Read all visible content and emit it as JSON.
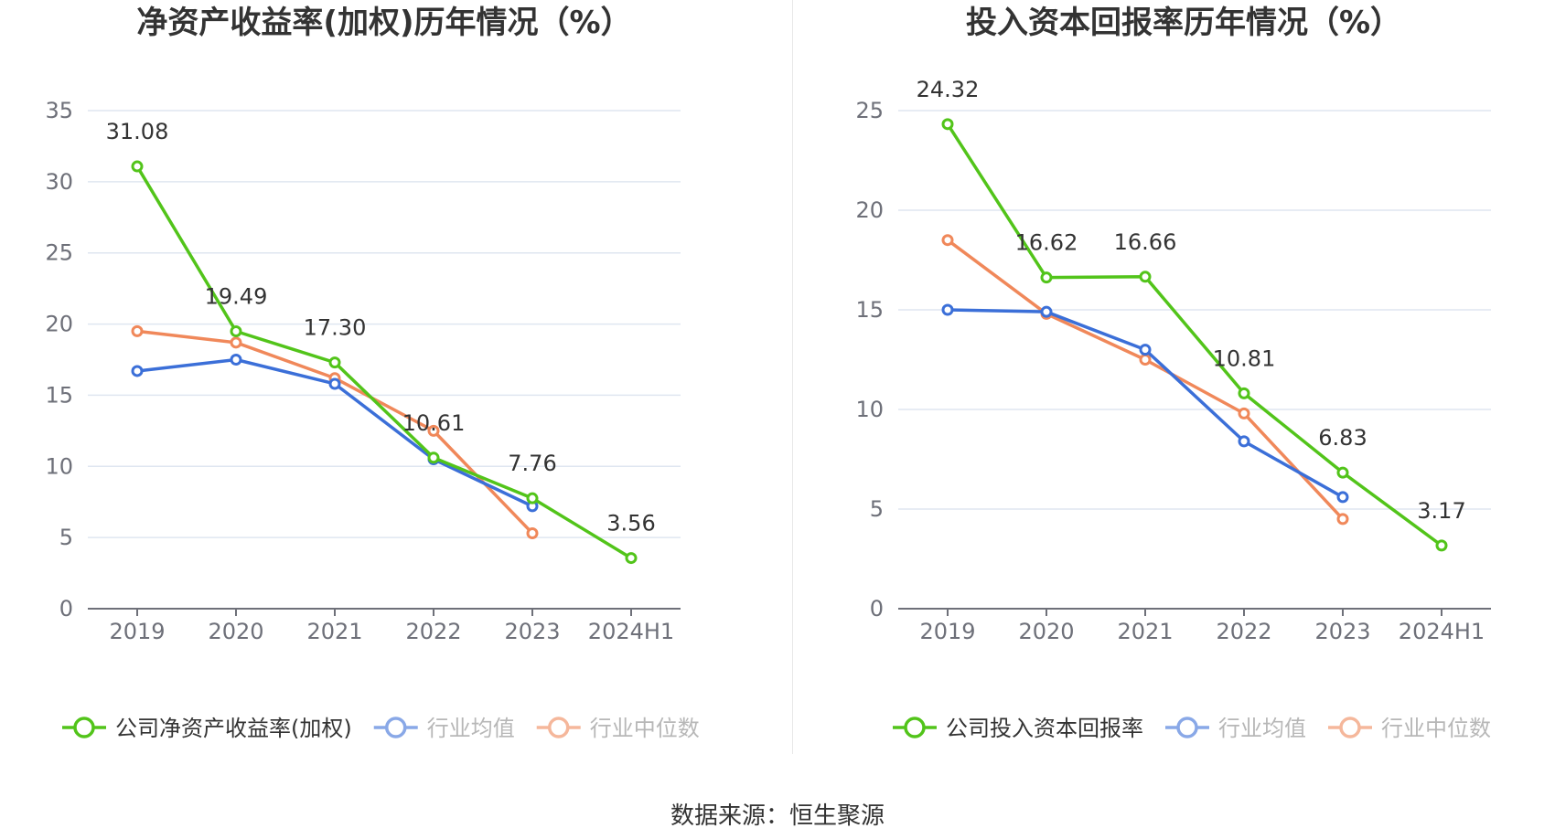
{
  "source_label": "数据来源：恒生聚源",
  "colors": {
    "company": "#52c41a",
    "industry_avg": "#3b6fd8",
    "industry_median": "#f0885a",
    "grid": "#dfe6f0",
    "axis": "#6e7079"
  },
  "chart_data": [
    {
      "type": "line",
      "title": "净资产收益率(加权)历年情况（%）",
      "x": [
        "2019",
        "2020",
        "2021",
        "2022",
        "2023",
        "2024H1"
      ],
      "ylim": [
        0,
        35
      ],
      "yticks": [
        "0",
        "5",
        "10",
        "15",
        "20",
        "25",
        "30",
        "35"
      ],
      "grid": true,
      "legend": "bottom",
      "series": [
        {
          "name": "公司净资产收益率(加权)",
          "key": "company",
          "values": [
            31.08,
            19.49,
            17.3,
            10.61,
            7.76,
            3.56
          ],
          "labels": [
            "31.08",
            "19.49",
            "17.30",
            "10.61",
            "7.76",
            "3.56"
          ]
        },
        {
          "name": "行业均值",
          "key": "industry_avg",
          "values": [
            16.7,
            17.5,
            15.8,
            10.5,
            7.2,
            null
          ]
        },
        {
          "name": "行业中位数",
          "key": "industry_median",
          "values": [
            19.5,
            18.7,
            16.2,
            12.5,
            5.3,
            null
          ]
        }
      ]
    },
    {
      "type": "line",
      "title": "投入资本回报率历年情况（%）",
      "x": [
        "2019",
        "2020",
        "2021",
        "2022",
        "2023",
        "2024H1"
      ],
      "ylim": [
        0,
        25
      ],
      "yticks": [
        "0",
        "5",
        "10",
        "15",
        "20",
        "25"
      ],
      "grid": true,
      "legend": "bottom",
      "series": [
        {
          "name": "公司投入资本回报率",
          "key": "company",
          "values": [
            24.32,
            16.62,
            16.66,
            10.81,
            6.83,
            3.17
          ],
          "labels": [
            "24.32",
            "16.62",
            "16.66",
            "10.81",
            "6.83",
            "3.17"
          ]
        },
        {
          "name": "行业均值",
          "key": "industry_avg",
          "values": [
            15.0,
            14.9,
            13.0,
            8.4,
            5.6,
            null
          ]
        },
        {
          "name": "行业中位数",
          "key": "industry_median",
          "values": [
            18.5,
            14.8,
            12.5,
            9.8,
            4.5,
            null
          ]
        }
      ]
    }
  ]
}
